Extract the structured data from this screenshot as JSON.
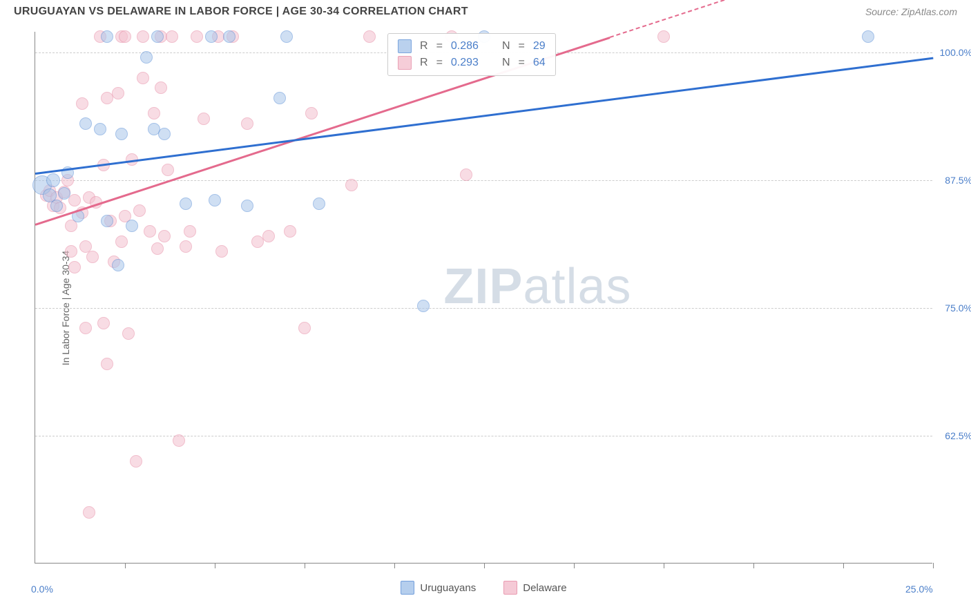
{
  "header": {
    "title": "URUGUAYAN VS DELAWARE IN LABOR FORCE | AGE 30-34 CORRELATION CHART",
    "source": "Source: ZipAtlas.com"
  },
  "watermark": {
    "part1": "ZIP",
    "part2": "atlas"
  },
  "chart": {
    "type": "scatter",
    "yaxis_title": "In Labor Force | Age 30-34",
    "background_color": "#ffffff",
    "grid_color": "#cccccc",
    "axis_color": "#888888",
    "tick_label_color": "#4a7ec9",
    "xlim": [
      0,
      25
    ],
    "ylim": [
      50,
      102
    ],
    "xticks_minor": [
      2.5,
      5.0,
      7.5,
      10.0,
      12.5,
      15.0,
      17.5,
      20.0,
      22.5,
      25.0
    ],
    "xtick_labels": [
      {
        "value": 0.0,
        "label": "0.0%"
      },
      {
        "value": 25.0,
        "label": "25.0%"
      }
    ],
    "ytick_labels": [
      {
        "value": 62.5,
        "label": "62.5%"
      },
      {
        "value": 75.0,
        "label": "75.0%"
      },
      {
        "value": 87.5,
        "label": "87.5%"
      },
      {
        "value": 100.0,
        "label": "100.0%"
      }
    ],
    "series": {
      "uruguayans": {
        "label": "Uruguayans",
        "fill_color": "#a9c6ea",
        "stroke_color": "#5b8fd6",
        "fill_opacity": 0.55,
        "marker_radius": 9,
        "trend_color": "#2f6fd0",
        "trend_start": {
          "x": 0.0,
          "y": 88.2
        },
        "trend_end": {
          "x": 25.0,
          "y": 99.5
        },
        "points": [
          {
            "x": 0.2,
            "y": 87.0,
            "r": 14
          },
          {
            "x": 0.4,
            "y": 86.0,
            "r": 10
          },
          {
            "x": 0.5,
            "y": 87.5,
            "r": 10
          },
          {
            "x": 0.6,
            "y": 85.0
          },
          {
            "x": 0.8,
            "y": 86.2
          },
          {
            "x": 0.9,
            "y": 88.2
          },
          {
            "x": 1.2,
            "y": 84.0
          },
          {
            "x": 1.4,
            "y": 93.0
          },
          {
            "x": 1.8,
            "y": 92.5
          },
          {
            "x": 2.0,
            "y": 83.5
          },
          {
            "x": 2.0,
            "y": 101.5
          },
          {
            "x": 2.3,
            "y": 79.2
          },
          {
            "x": 2.4,
            "y": 92.0
          },
          {
            "x": 2.7,
            "y": 83.0
          },
          {
            "x": 3.1,
            "y": 99.5
          },
          {
            "x": 3.3,
            "y": 92.5
          },
          {
            "x": 3.4,
            "y": 101.5
          },
          {
            "x": 3.6,
            "y": 92.0
          },
          {
            "x": 4.2,
            "y": 85.2
          },
          {
            "x": 4.9,
            "y": 101.5
          },
          {
            "x": 5.0,
            "y": 85.5
          },
          {
            "x": 5.4,
            "y": 101.5
          },
          {
            "x": 5.9,
            "y": 85.0
          },
          {
            "x": 6.8,
            "y": 95.5
          },
          {
            "x": 7.0,
            "y": 101.5
          },
          {
            "x": 7.9,
            "y": 85.2
          },
          {
            "x": 10.8,
            "y": 75.2
          },
          {
            "x": 12.5,
            "y": 101.5
          },
          {
            "x": 23.2,
            "y": 101.5
          }
        ]
      },
      "delaware": {
        "label": "Delaware",
        "fill_color": "#f4c1cf",
        "stroke_color": "#e68aa4",
        "fill_opacity": 0.55,
        "marker_radius": 9,
        "trend_color": "#e46a8d",
        "trend_start": {
          "x": 0.0,
          "y": 83.2
        },
        "trend_end": {
          "x": 16.0,
          "y": 101.5
        },
        "trend_dash_end": {
          "x": 25.0,
          "y": 111.8
        },
        "points": [
          {
            "x": 0.3,
            "y": 86.0
          },
          {
            "x": 0.4,
            "y": 86.5
          },
          {
            "x": 0.5,
            "y": 85.0
          },
          {
            "x": 0.6,
            "y": 85.8
          },
          {
            "x": 0.7,
            "y": 84.8
          },
          {
            "x": 0.8,
            "y": 86.3
          },
          {
            "x": 0.9,
            "y": 87.5
          },
          {
            "x": 1.0,
            "y": 80.5
          },
          {
            "x": 1.0,
            "y": 83.0
          },
          {
            "x": 1.1,
            "y": 79.0
          },
          {
            "x": 1.1,
            "y": 85.5
          },
          {
            "x": 1.3,
            "y": 84.3
          },
          {
            "x": 1.3,
            "y": 95.0
          },
          {
            "x": 1.4,
            "y": 73.0
          },
          {
            "x": 1.4,
            "y": 81.0
          },
          {
            "x": 1.5,
            "y": 85.8
          },
          {
            "x": 1.5,
            "y": 55.0
          },
          {
            "x": 1.6,
            "y": 80.0
          },
          {
            "x": 1.7,
            "y": 85.3
          },
          {
            "x": 1.8,
            "y": 101.5
          },
          {
            "x": 1.9,
            "y": 73.5
          },
          {
            "x": 1.9,
            "y": 89.0
          },
          {
            "x": 2.0,
            "y": 95.5
          },
          {
            "x": 2.0,
            "y": 69.5
          },
          {
            "x": 2.1,
            "y": 83.5
          },
          {
            "x": 2.2,
            "y": 79.5
          },
          {
            "x": 2.3,
            "y": 96.0
          },
          {
            "x": 2.4,
            "y": 81.5
          },
          {
            "x": 2.4,
            "y": 101.5
          },
          {
            "x": 2.5,
            "y": 101.5
          },
          {
            "x": 2.5,
            "y": 84.0
          },
          {
            "x": 2.6,
            "y": 72.5
          },
          {
            "x": 2.7,
            "y": 89.5
          },
          {
            "x": 2.8,
            "y": 60.0
          },
          {
            "x": 2.9,
            "y": 84.5
          },
          {
            "x": 3.0,
            "y": 97.5
          },
          {
            "x": 3.0,
            "y": 101.5
          },
          {
            "x": 3.2,
            "y": 82.5
          },
          {
            "x": 3.3,
            "y": 94.0
          },
          {
            "x": 3.4,
            "y": 80.8
          },
          {
            "x": 3.5,
            "y": 96.5
          },
          {
            "x": 3.5,
            "y": 101.5
          },
          {
            "x": 3.6,
            "y": 82.0
          },
          {
            "x": 3.7,
            "y": 88.5
          },
          {
            "x": 3.8,
            "y": 101.5
          },
          {
            "x": 4.0,
            "y": 62.0
          },
          {
            "x": 4.2,
            "y": 81.0
          },
          {
            "x": 4.3,
            "y": 82.5
          },
          {
            "x": 4.5,
            "y": 101.5
          },
          {
            "x": 4.7,
            "y": 93.5
          },
          {
            "x": 5.1,
            "y": 101.5
          },
          {
            "x": 5.2,
            "y": 80.5
          },
          {
            "x": 5.5,
            "y": 101.5
          },
          {
            "x": 5.9,
            "y": 93.0
          },
          {
            "x": 6.2,
            "y": 81.5
          },
          {
            "x": 6.5,
            "y": 82.0
          },
          {
            "x": 7.1,
            "y": 82.5
          },
          {
            "x": 7.5,
            "y": 73.0
          },
          {
            "x": 7.7,
            "y": 94.0
          },
          {
            "x": 8.8,
            "y": 87.0
          },
          {
            "x": 9.3,
            "y": 101.5
          },
          {
            "x": 11.6,
            "y": 101.5
          },
          {
            "x": 12.0,
            "y": 88.0
          },
          {
            "x": 17.5,
            "y": 101.5
          }
        ]
      }
    },
    "stats": [
      {
        "series": "uruguayans",
        "R_label": "R",
        "R": "0.286",
        "N_label": "N",
        "N": "29"
      },
      {
        "series": "delaware",
        "R_label": "R",
        "R": "0.293",
        "N_label": "N",
        "N": "64"
      }
    ]
  }
}
